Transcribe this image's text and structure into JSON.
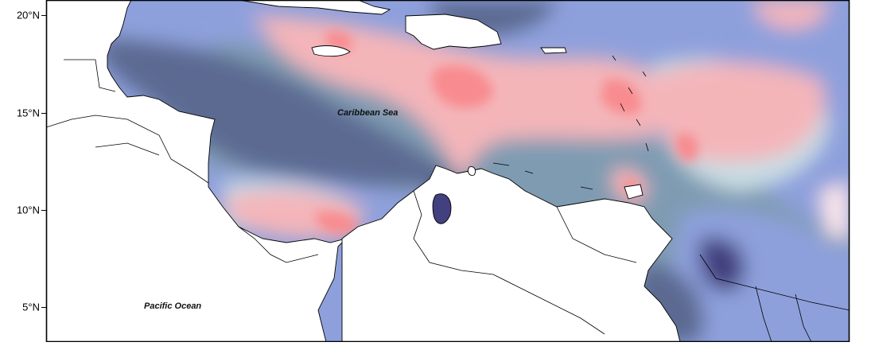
{
  "map": {
    "latitude_labels": [
      "20°N",
      "15°N",
      "10°N",
      "5°N"
    ],
    "place_labels": {
      "caribbean": "Caribbean Sea",
      "pacific": "Pacific Ocean"
    },
    "legend": "",
    "colors": {
      "very_low": "#42407f",
      "low": "#5c6b92",
      "mid_low": "#7f9bb2",
      "slightly_low": "#8ea0dc",
      "near_zero": "#c9dde4",
      "near_zero_warm": "#fde6e9",
      "slightly_high": "#f4b5b9",
      "high": "#f88b8f",
      "land": "#ffffff",
      "outline": "#000000"
    }
  }
}
